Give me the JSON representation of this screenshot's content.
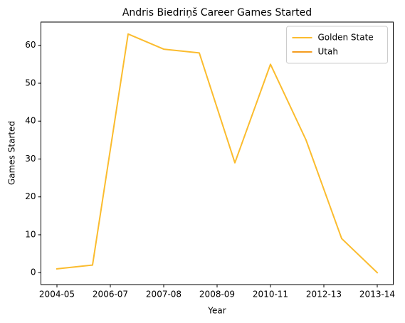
{
  "chart_data": {
    "type": "line",
    "title": "Andris Biedriņš Career Games Started",
    "x_label": "Year",
    "y_label": "Games Started",
    "x": [
      0,
      1,
      2,
      3,
      4,
      5,
      6,
      7,
      8,
      9
    ],
    "series": [
      {
        "name": "Golden State",
        "color": "#fbbc2e",
        "values": [
          1,
          2,
          63,
          59,
          58,
          29,
          55,
          35,
          9,
          0
        ]
      },
      {
        "name": "Utah",
        "color": "#f59d1f",
        "values": [
          null,
          null,
          null,
          null,
          null,
          null,
          null,
          null,
          null,
          0
        ]
      }
    ],
    "xlim": [
      -0.45,
      9.45
    ],
    "xticks": [
      {
        "value": 0,
        "label": "2004-05"
      },
      {
        "value": 1.5,
        "label": "2006-07"
      },
      {
        "value": 3,
        "label": "2007-08"
      },
      {
        "value": 4.5,
        "label": "2008-09"
      },
      {
        "value": 6,
        "label": "2010-11"
      },
      {
        "value": 7.5,
        "label": "2012-13"
      },
      {
        "value": 9,
        "label": "2013-14"
      }
    ],
    "ylim": [
      -3.15,
      66.15
    ],
    "yticks": [
      0,
      10,
      20,
      30,
      40,
      50,
      60
    ],
    "grid": false,
    "legend": "upper right"
  }
}
